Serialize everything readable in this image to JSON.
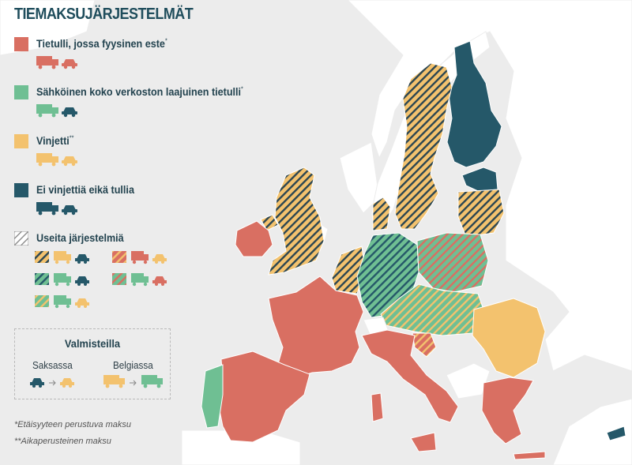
{
  "title": "TIEMAKSUJÄRJESTELMÄT",
  "colors": {
    "physical_toll": "#d96f62",
    "electronic_toll": "#6fbf93",
    "vignette": "#f3c26e",
    "none": "#255869",
    "land": "#ffffff",
    "sea": "#ececec"
  },
  "legend": {
    "items": [
      {
        "label": "Tietulli, jossa fyysinen este",
        "note": "*",
        "color": "#d96f62"
      },
      {
        "label": "Sähköinen koko verkoston laajuinen tietulli",
        "note": "*",
        "color": "#6fbf93"
      },
      {
        "label": "Vinjetti",
        "note": "**",
        "color": "#f3c26e"
      },
      {
        "label": "Ei vinjettiä eikä tullia",
        "note": "",
        "color": "#255869"
      }
    ],
    "multiple_label": "Useita järjestelmiä",
    "multiple_combinations": [
      {
        "stripe": "#f3c26e",
        "truck": "#f3c26e",
        "car": "#255869"
      },
      {
        "stripe": "#d96f62",
        "truck": "#d96f62",
        "car": "#f3c26e"
      },
      {
        "stripe": "#6fbf93",
        "truck": "#6fbf93",
        "car": "#255869"
      },
      {
        "stripe": "#d96f62",
        "truck": "#6fbf93",
        "car": "#d96f62"
      },
      {
        "stripe": "#f3c26e",
        "truck": "#6fbf93",
        "car": "#f3c26e"
      }
    ]
  },
  "planned": {
    "title": "Valmisteilla",
    "germany_label": "Saksassa",
    "belgium_label": "Belgiassa"
  },
  "footnotes": [
    "*Etäisyyteen perustuva maksu",
    "**Aikaperusteinen maksu"
  ]
}
